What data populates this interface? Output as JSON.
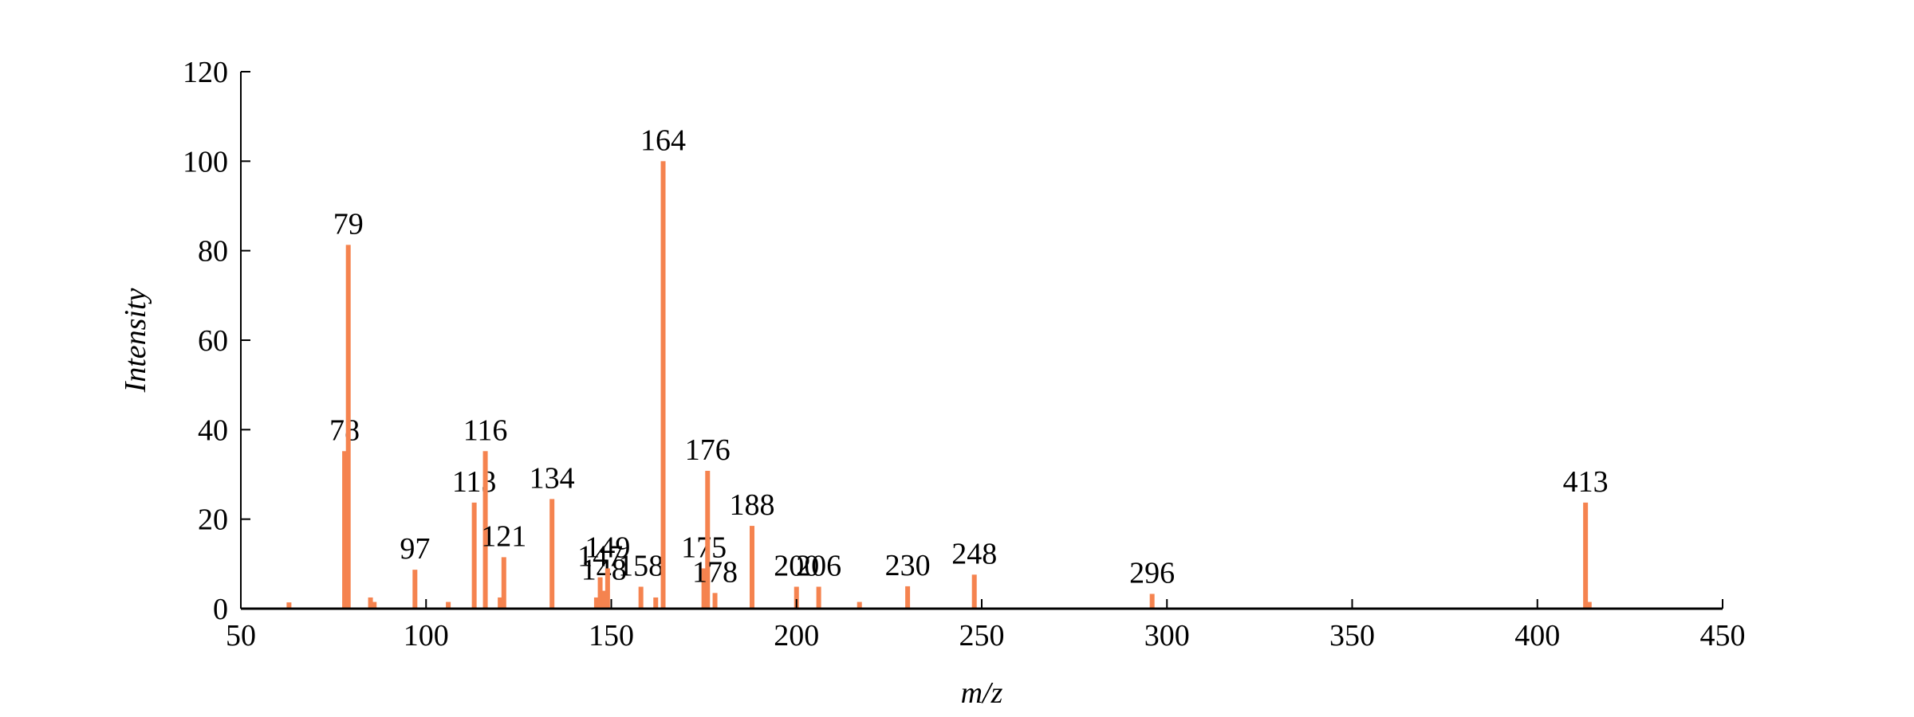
{
  "chart_data": {
    "type": "bar",
    "xlabel": "m/z",
    "ylabel": "Intensity",
    "x": [
      63,
      78,
      79,
      85,
      86,
      97,
      106,
      113,
      116,
      120,
      121,
      134,
      146,
      147,
      148,
      149,
      158,
      162,
      164,
      175,
      176,
      178,
      188,
      200,
      206,
      217,
      230,
      248,
      296,
      413,
      414
    ],
    "values": [
      1.4,
      35.2,
      81.3,
      2.5,
      1.5,
      8.7,
      1.5,
      23.7,
      35.2,
      2.5,
      11.5,
      24.5,
      2.5,
      7,
      4,
      9,
      4.9,
      2.5,
      100,
      9,
      30.8,
      3.5,
      18.5,
      4.9,
      4.9,
      1.5,
      5,
      7.6,
      3.3,
      23.7,
      1.5
    ],
    "annotate": [
      false,
      true,
      true,
      false,
      false,
      true,
      false,
      true,
      true,
      false,
      true,
      true,
      false,
      true,
      true,
      true,
      true,
      false,
      true,
      true,
      true,
      true,
      true,
      true,
      true,
      false,
      true,
      true,
      true,
      true,
      false
    ],
    "color": "#f5834f",
    "xlim": [
      50,
      450
    ],
    "xticks": [
      50,
      100,
      150,
      200,
      250,
      300,
      350,
      400,
      450
    ],
    "ylim": [
      0,
      120
    ],
    "yticks": [
      0,
      20,
      40,
      60,
      80,
      100,
      120
    ]
  }
}
